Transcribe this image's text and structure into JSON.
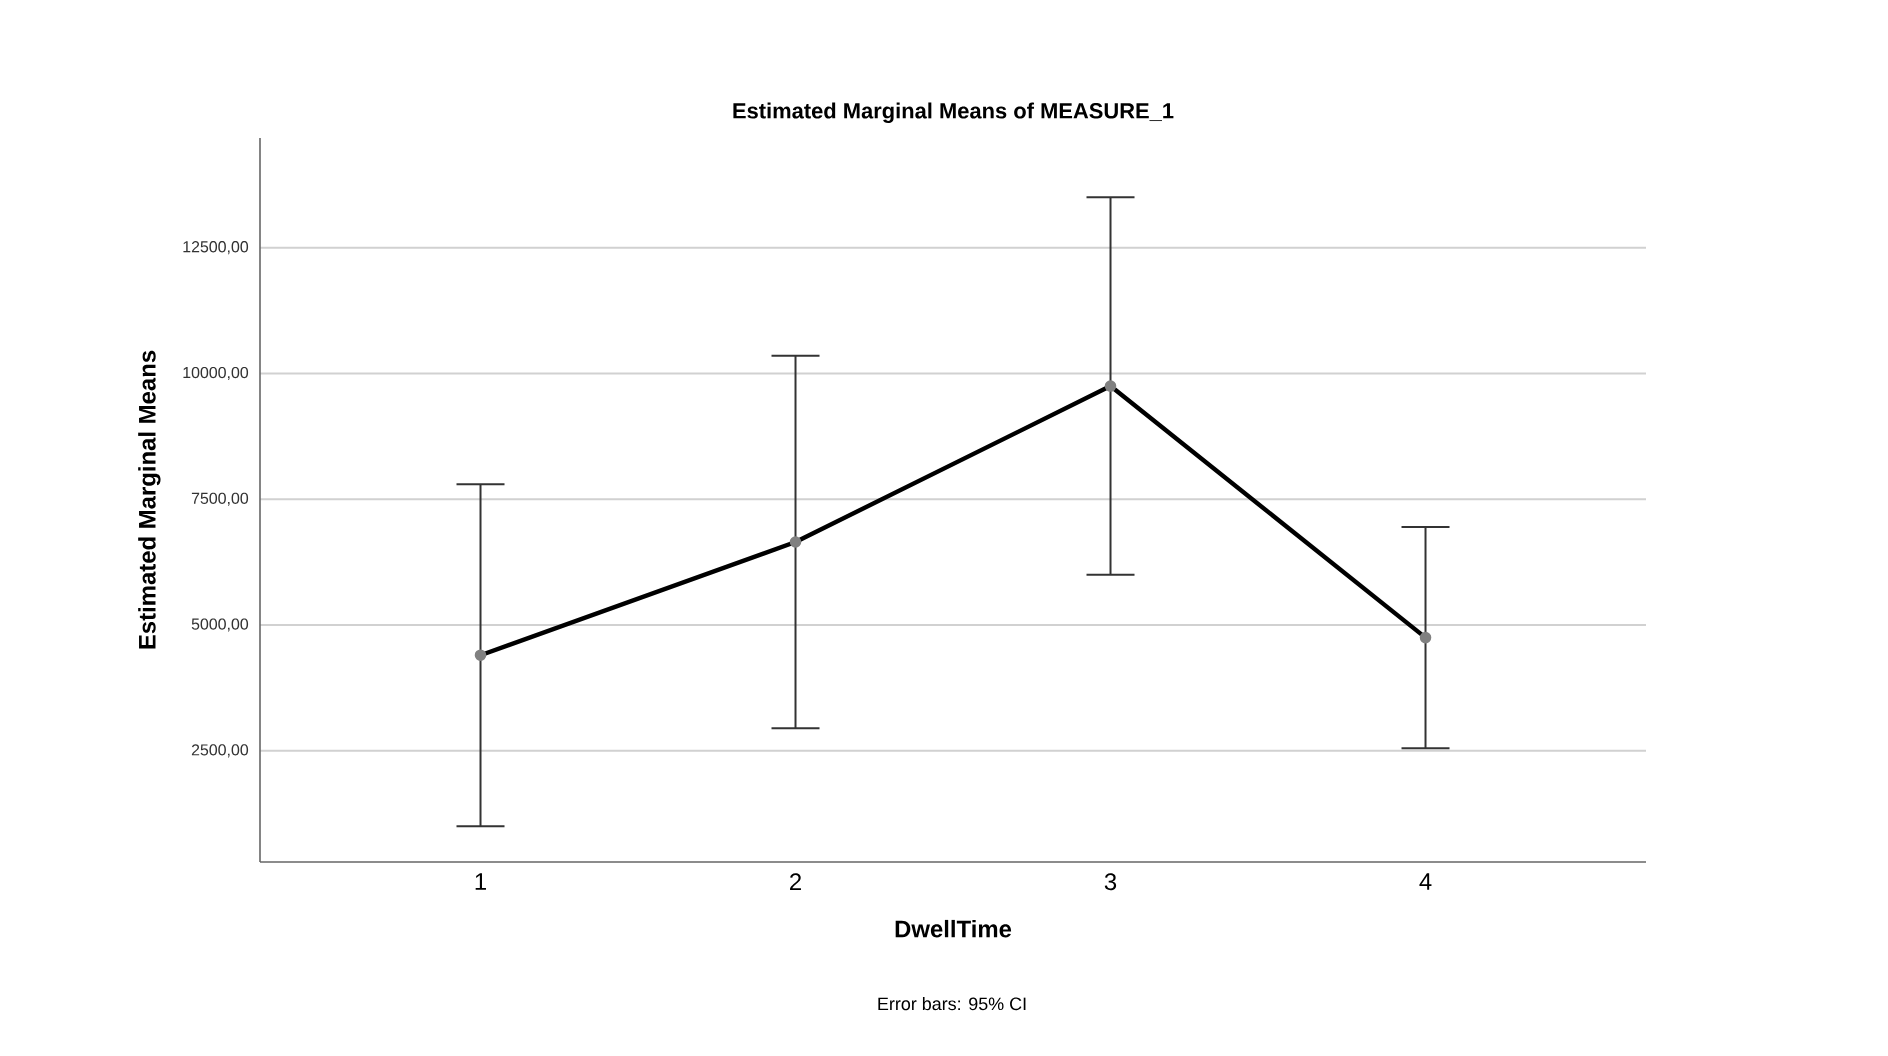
{
  "chart_data": {
    "type": "line",
    "title": "Estimated Marginal Means of MEASURE_1",
    "xlabel": "DwellTime",
    "ylabel": "Estimated Marginal Means",
    "annotations": [
      "Error bars: 95% CI"
    ],
    "categories": [
      "1",
      "2",
      "3",
      "4"
    ],
    "series": [
      {
        "color": "#000000",
        "values": [
          4400,
          6650,
          9750,
          4750
        ],
        "errors": [
          3400,
          3700,
          3750,
          2200
        ]
      }
    ],
    "ylim": [
      290,
      14680
    ],
    "yticks": [
      {
        "value": 2500,
        "label": "2500,00"
      },
      {
        "value": 5000,
        "label": "5000,00"
      },
      {
        "value": 7500,
        "label": "7500,00"
      },
      {
        "value": 10000,
        "label": "10000,00"
      },
      {
        "value": 12500,
        "label": "12500,00"
      }
    ],
    "grid": "y",
    "marker": "circle",
    "line_style": "solid"
  }
}
